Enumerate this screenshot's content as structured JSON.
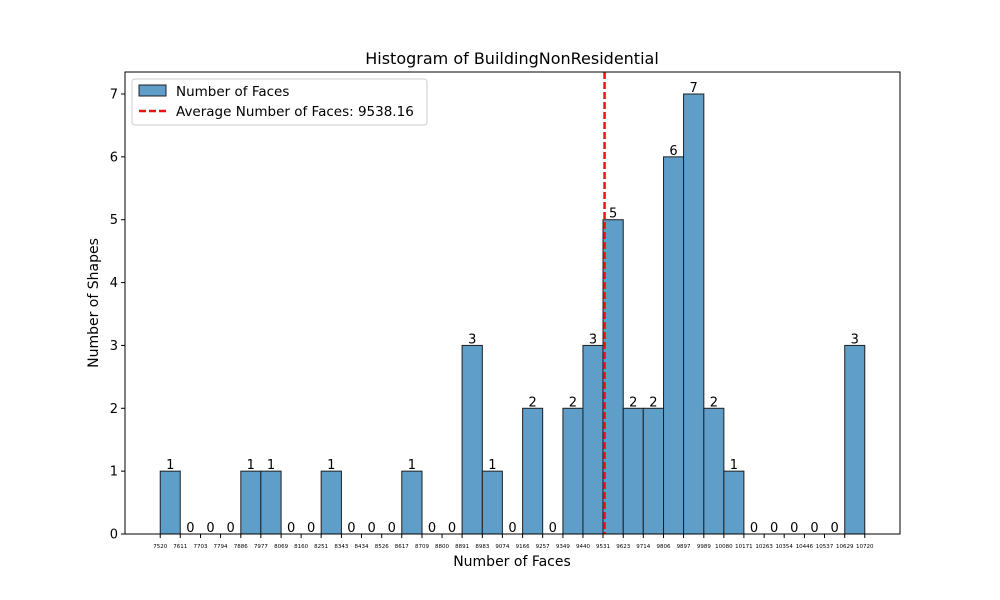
{
  "chart_data": {
    "type": "bar",
    "title": "Histogram of BuildingNonResidential",
    "xlabel": "Number of Faces",
    "ylabel": "Number of Shapes",
    "ylim": [
      0,
      7.35
    ],
    "y_ticks": [
      "0",
      "1",
      "2",
      "3",
      "4",
      "5",
      "6",
      "7"
    ],
    "x_ticks": [
      "7520",
      "7611",
      "7703",
      "7794",
      "7886",
      "7977",
      "8069",
      "8160",
      "8251",
      "8343",
      "8434",
      "8526",
      "8617",
      "8709",
      "8800",
      "8891",
      "8983",
      "9074",
      "9166",
      "9257",
      "9349",
      "9440",
      "9531",
      "9623",
      "9714",
      "9806",
      "9897",
      "9989",
      "10080",
      "10171",
      "10263",
      "10354",
      "10446",
      "10537",
      "10629",
      "10720"
    ],
    "values": [
      1,
      0,
      0,
      0,
      1,
      1,
      0,
      0,
      1,
      0,
      0,
      0,
      1,
      0,
      0,
      3,
      1,
      0,
      2,
      0,
      2,
      3,
      5,
      2,
      2,
      6,
      7,
      2,
      1,
      0,
      0,
      0,
      0,
      0,
      3
    ],
    "average": 9538.16,
    "colors": {
      "bar": "#5f9ec9",
      "bar_edge": "#1f1f1f",
      "average_line": "#ee1111"
    },
    "legend": {
      "position": "upper-left",
      "entries": [
        {
          "label": "Number of Faces",
          "kind": "patch"
        },
        {
          "label": "Average Number of Faces: 9538.16",
          "kind": "dashed-line"
        }
      ]
    },
    "grid": false
  }
}
